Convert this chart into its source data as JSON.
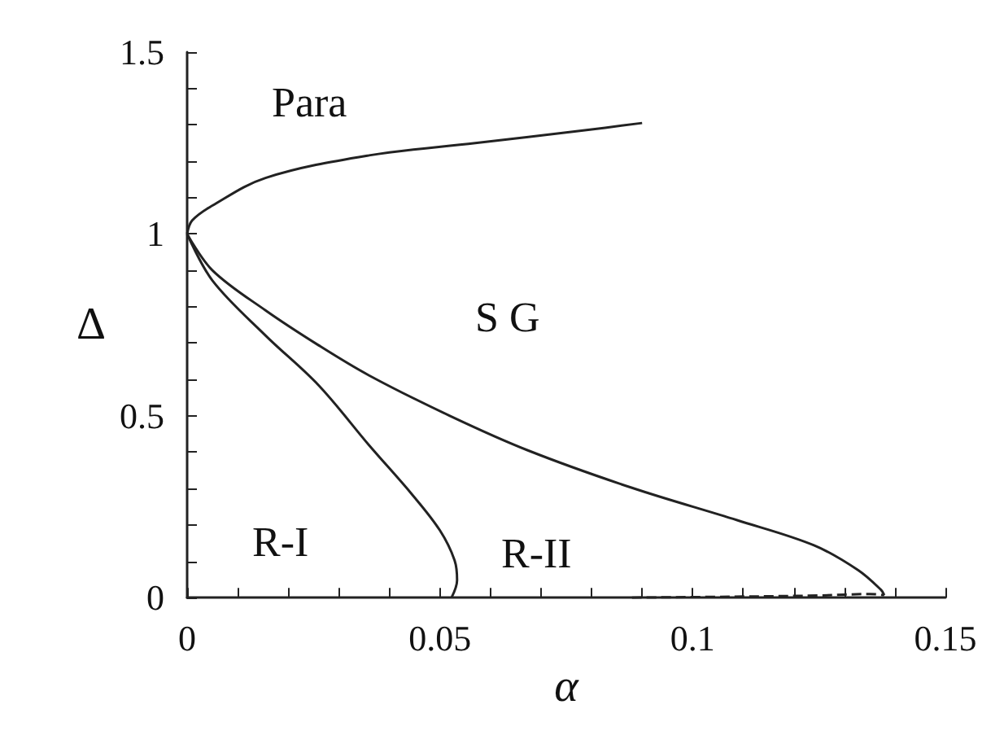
{
  "chart_data": {
    "type": "line",
    "xlabel": "α",
    "ylabel": "Δ",
    "xlim": [
      0,
      0.15
    ],
    "ylim": [
      0,
      1.5
    ],
    "xticks": [
      0,
      {
        "value": 0.01,
        "label": null
      },
      {
        "value": 0.02,
        "label": null
      },
      {
        "value": 0.03,
        "label": null
      },
      {
        "value": 0.04,
        "label": null
      },
      0.05,
      {
        "value": 0.06,
        "label": null
      },
      {
        "value": 0.07,
        "label": null
      },
      {
        "value": 0.08,
        "label": null
      },
      {
        "value": 0.09,
        "label": null
      },
      0.1,
      {
        "value": 0.11,
        "label": null
      },
      {
        "value": 0.12,
        "label": null
      },
      {
        "value": 0.13,
        "label": null
      },
      {
        "value": 0.14,
        "label": null
      },
      0.15
    ],
    "yticks": [
      0,
      {
        "value": 0.1,
        "label": null
      },
      {
        "value": 0.2,
        "label": null
      },
      {
        "value": 0.3,
        "label": null
      },
      {
        "value": 0.4,
        "label": null
      },
      0.5,
      {
        "value": 0.6,
        "label": null
      },
      {
        "value": 0.7,
        "label": null
      },
      {
        "value": 0.8,
        "label": null
      },
      {
        "value": 0.9,
        "label": null
      },
      1,
      {
        "value": 1.1,
        "label": null
      },
      {
        "value": 1.2,
        "label": null
      },
      {
        "value": 1.3,
        "label": null
      },
      {
        "value": 1.4,
        "label": null
      },
      1.5
    ],
    "grid": false,
    "marker": "none",
    "series": [
      {
        "color": "#222222",
        "line_style": "solid",
        "x": [
          0,
          0.001,
          0.005,
          0.0155,
          0.036,
          0.057,
          0.078,
          0.09
        ],
        "values": [
          1,
          1.037,
          1.078,
          1.154,
          1.216,
          1.25,
          1.284,
          1.305
        ]
      },
      {
        "color": "#222222",
        "line_style": "solid",
        "x": [
          0,
          0.005,
          0.0155,
          0.026,
          0.036,
          0.0446,
          0.05,
          0.0529,
          0.0534,
          0.0523
        ],
        "values": [
          1,
          0.872,
          0.721,
          0.584,
          0.419,
          0.282,
          0.185,
          0.103,
          0.048,
          0
        ]
      },
      {
        "color": "#222222",
        "line_style": "solid",
        "x": [
          0,
          0.005,
          0.0155,
          0.026,
          0.036,
          0.0518,
          0.0674,
          0.088,
          0.1088,
          0.124,
          0.1327,
          0.1373,
          0.1379
        ],
        "values": [
          1,
          0.9,
          0.79,
          0.694,
          0.611,
          0.501,
          0.405,
          0.302,
          0.213,
          0.144,
          0.076,
          0.021,
          0.007
        ]
      },
      {
        "color": "#222222",
        "line_style": "dashed",
        "x": [
          0.088,
          0.11,
          0.125,
          0.135,
          0.1379
        ],
        "values": [
          0,
          0.003,
          0.006,
          0.01,
          0.007
        ]
      }
    ],
    "annotations": [
      "Para",
      "S G",
      "R-I",
      "R-II"
    ]
  }
}
